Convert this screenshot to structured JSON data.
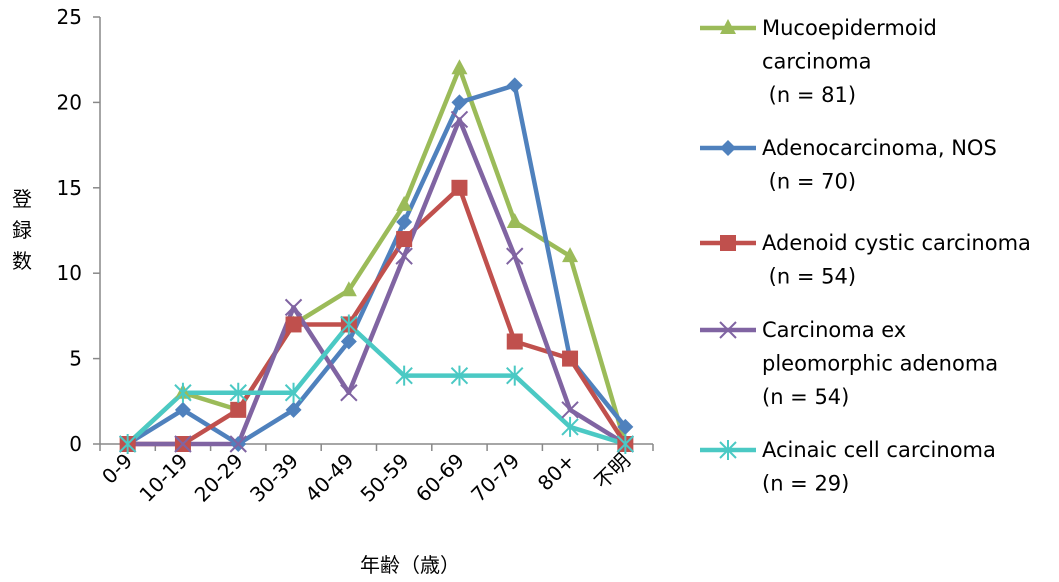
{
  "chart_data": {
    "type": "line",
    "title": "",
    "xlabel": "年齢（歳）",
    "ylabel": "登録数",
    "categories": [
      "0-9",
      "10-19",
      "20-29",
      "30-39",
      "40-49",
      "50-59",
      "60-69",
      "70-79",
      "80+",
      "不明"
    ],
    "ylim": [
      0,
      25
    ],
    "yticks": [
      0,
      5,
      10,
      15,
      20,
      25
    ],
    "grid": false,
    "legend_position": "right",
    "series": [
      {
        "name": "Mucoepidermoid carcinoma (n = 81)",
        "legend_lines": [
          "Mucoepidermoid",
          "carcinoma",
          " (n = 81)"
        ],
        "color": "#9BBB59",
        "marker": "triangle",
        "values": [
          0,
          3,
          2,
          7,
          9,
          14,
          22,
          13,
          11,
          0
        ]
      },
      {
        "name": "Adenocarcinoma, NOS (n = 70)",
        "legend_lines": [
          "Adenocarcinoma, NOS",
          " (n = 70)"
        ],
        "color": "#4F81BD",
        "marker": "diamond",
        "values": [
          0,
          2,
          0,
          2,
          6,
          13,
          20,
          21,
          5,
          1
        ]
      },
      {
        "name": "Adenoid cystic carcinoma (n = 54)",
        "legend_lines": [
          "Adenoid cystic carcinoma",
          " (n = 54)"
        ],
        "color": "#C0504D",
        "marker": "square",
        "values": [
          0,
          0,
          2,
          7,
          7,
          12,
          15,
          6,
          5,
          0
        ]
      },
      {
        "name": "Carcinoma ex pleomorphic adenoma (n = 54)",
        "legend_lines": [
          "Carcinoma ex",
          "pleomorphic adenoma",
          "(n = 54)"
        ],
        "color": "#8064A2",
        "marker": "x",
        "values": [
          0,
          0,
          0,
          8,
          3,
          11,
          19,
          11,
          2,
          0
        ]
      },
      {
        "name": "Acinaic cell carcinoma (n = 29)",
        "legend_lines": [
          "Acinaic cell carcinoma",
          "(n = 29)"
        ],
        "color": "#4BC9C4",
        "marker": "star",
        "values": [
          0,
          3,
          3,
          3,
          7,
          4,
          4,
          4,
          1,
          0
        ]
      }
    ]
  }
}
